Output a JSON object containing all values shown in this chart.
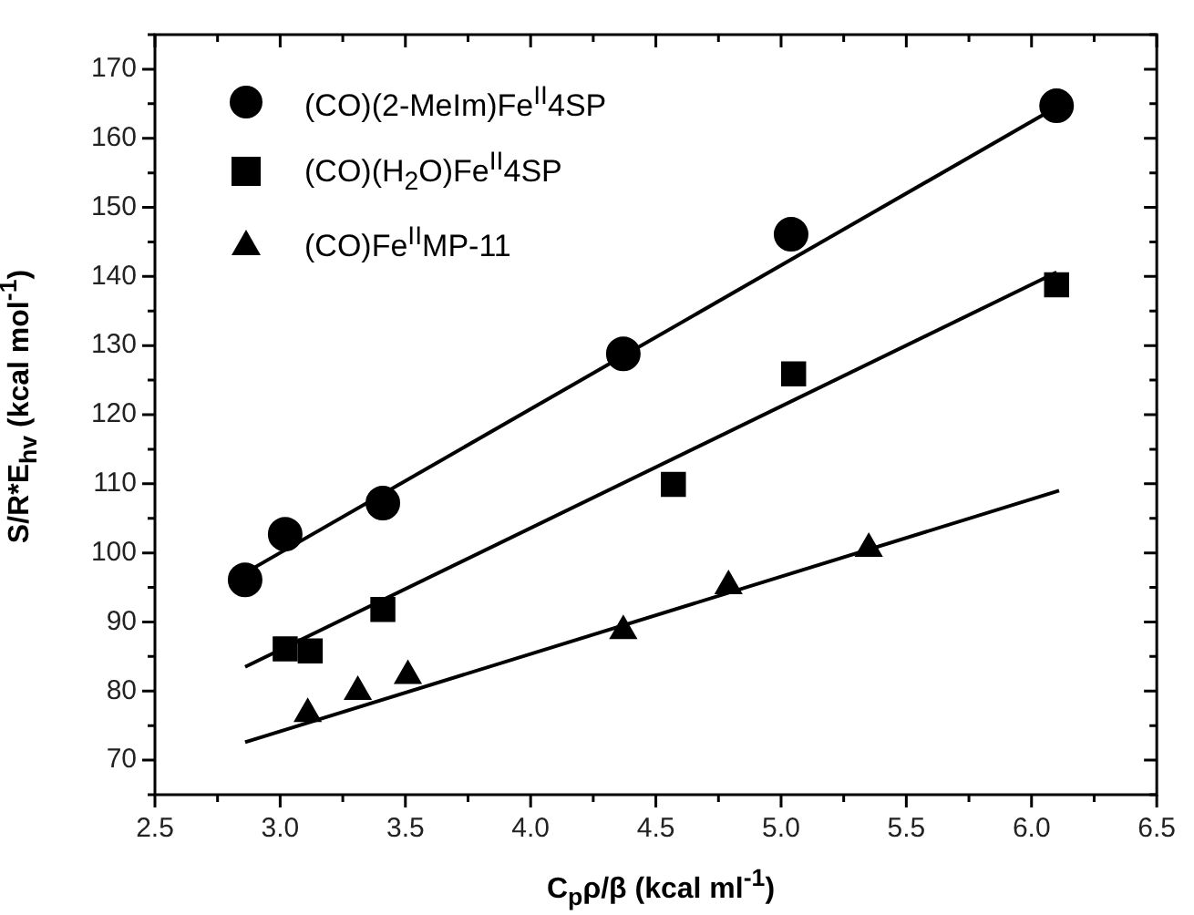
{
  "chart_data": {
    "type": "scatter",
    "xlabel": "C$_{p}$ρ/β (kcal ml$^{-1}$)",
    "ylabel": "S/R*E$_{hv}$ (kcal mol$^{-1}$)",
    "xlim": [
      2.5,
      6.5
    ],
    "ylim": [
      65,
      175
    ],
    "xticks": [
      {
        "value": 2.5,
        "label": "2.5"
      },
      {
        "value": 2.75,
        "label": null
      },
      {
        "value": 3,
        "label": "3.0"
      },
      {
        "value": 3.25,
        "label": null
      },
      {
        "value": 3.5,
        "label": "3.5"
      },
      {
        "value": 3.75,
        "label": null
      },
      {
        "value": 4,
        "label": "4.0"
      },
      {
        "value": 4.25,
        "label": null
      },
      {
        "value": 4.5,
        "label": "4.5"
      },
      {
        "value": 4.75,
        "label": null
      },
      {
        "value": 5,
        "label": "5.0"
      },
      {
        "value": 5.25,
        "label": null
      },
      {
        "value": 5.5,
        "label": "5.5"
      },
      {
        "value": 5.75,
        "label": null
      },
      {
        "value": 6,
        "label": "6.0"
      },
      {
        "value": 6.25,
        "label": null
      },
      {
        "value": 6.5,
        "label": "6.5"
      }
    ],
    "yticks": [
      {
        "value": 65,
        "label": null
      },
      70,
      {
        "value": 75,
        "label": null
      },
      80,
      {
        "value": 85,
        "label": null
      },
      90,
      {
        "value": 95,
        "label": null
      },
      100,
      {
        "value": 105,
        "label": null
      },
      110,
      {
        "value": 115,
        "label": null
      },
      120,
      {
        "value": 125,
        "label": null
      },
      130,
      {
        "value": 135,
        "label": null
      },
      140,
      {
        "value": 145,
        "label": null
      },
      150,
      {
        "value": 155,
        "label": null
      },
      160,
      {
        "value": 165,
        "label": null
      },
      170,
      {
        "value": 175,
        "label": null
      }
    ],
    "legend": "top left",
    "series": [
      {
        "name": "(CO)(2-MeIm)Fe$^{II}$4SP",
        "color": "#000000",
        "marker": "circle",
        "x": [
          2.86,
          3.02,
          3.41,
          4.37,
          5.04,
          6.1
        ],
        "values": [
          96.1,
          102.7,
          107.2,
          128.8,
          146.1,
          164.7
        ]
      },
      {
        "name": "(CO)(H$_{2}$O)Fe$^{II}$4SP",
        "color": "#000000",
        "marker": "square",
        "x": [
          3.02,
          3.12,
          3.41,
          4.57,
          5.05,
          6.1
        ],
        "values": [
          86.1,
          85.8,
          91.8,
          109.9,
          125.9,
          138.8
        ]
      },
      {
        "name": "(CO)Fe$^{II}$MP-11",
        "color": "#000000",
        "marker": "triangle",
        "x": [
          3.11,
          3.31,
          3.51,
          4.37,
          4.79,
          5.35
        ],
        "values": [
          76.7,
          79.9,
          82.2,
          88.7,
          95.2,
          100.6
        ]
      },
      {
        "type": "line",
        "color": "#000000",
        "marker": "none",
        "x": [
          2.86,
          6.1
        ],
        "values": [
          97.1,
          164.5
        ]
      },
      {
        "type": "line",
        "color": "#000000",
        "marker": "none",
        "x": [
          2.86,
          6.1
        ],
        "values": [
          83.5,
          140.6
        ]
      },
      {
        "type": "line",
        "color": "#000000",
        "marker": "none",
        "x": [
          2.86,
          6.11
        ],
        "values": [
          72.6,
          109.0
        ]
      }
    ]
  }
}
